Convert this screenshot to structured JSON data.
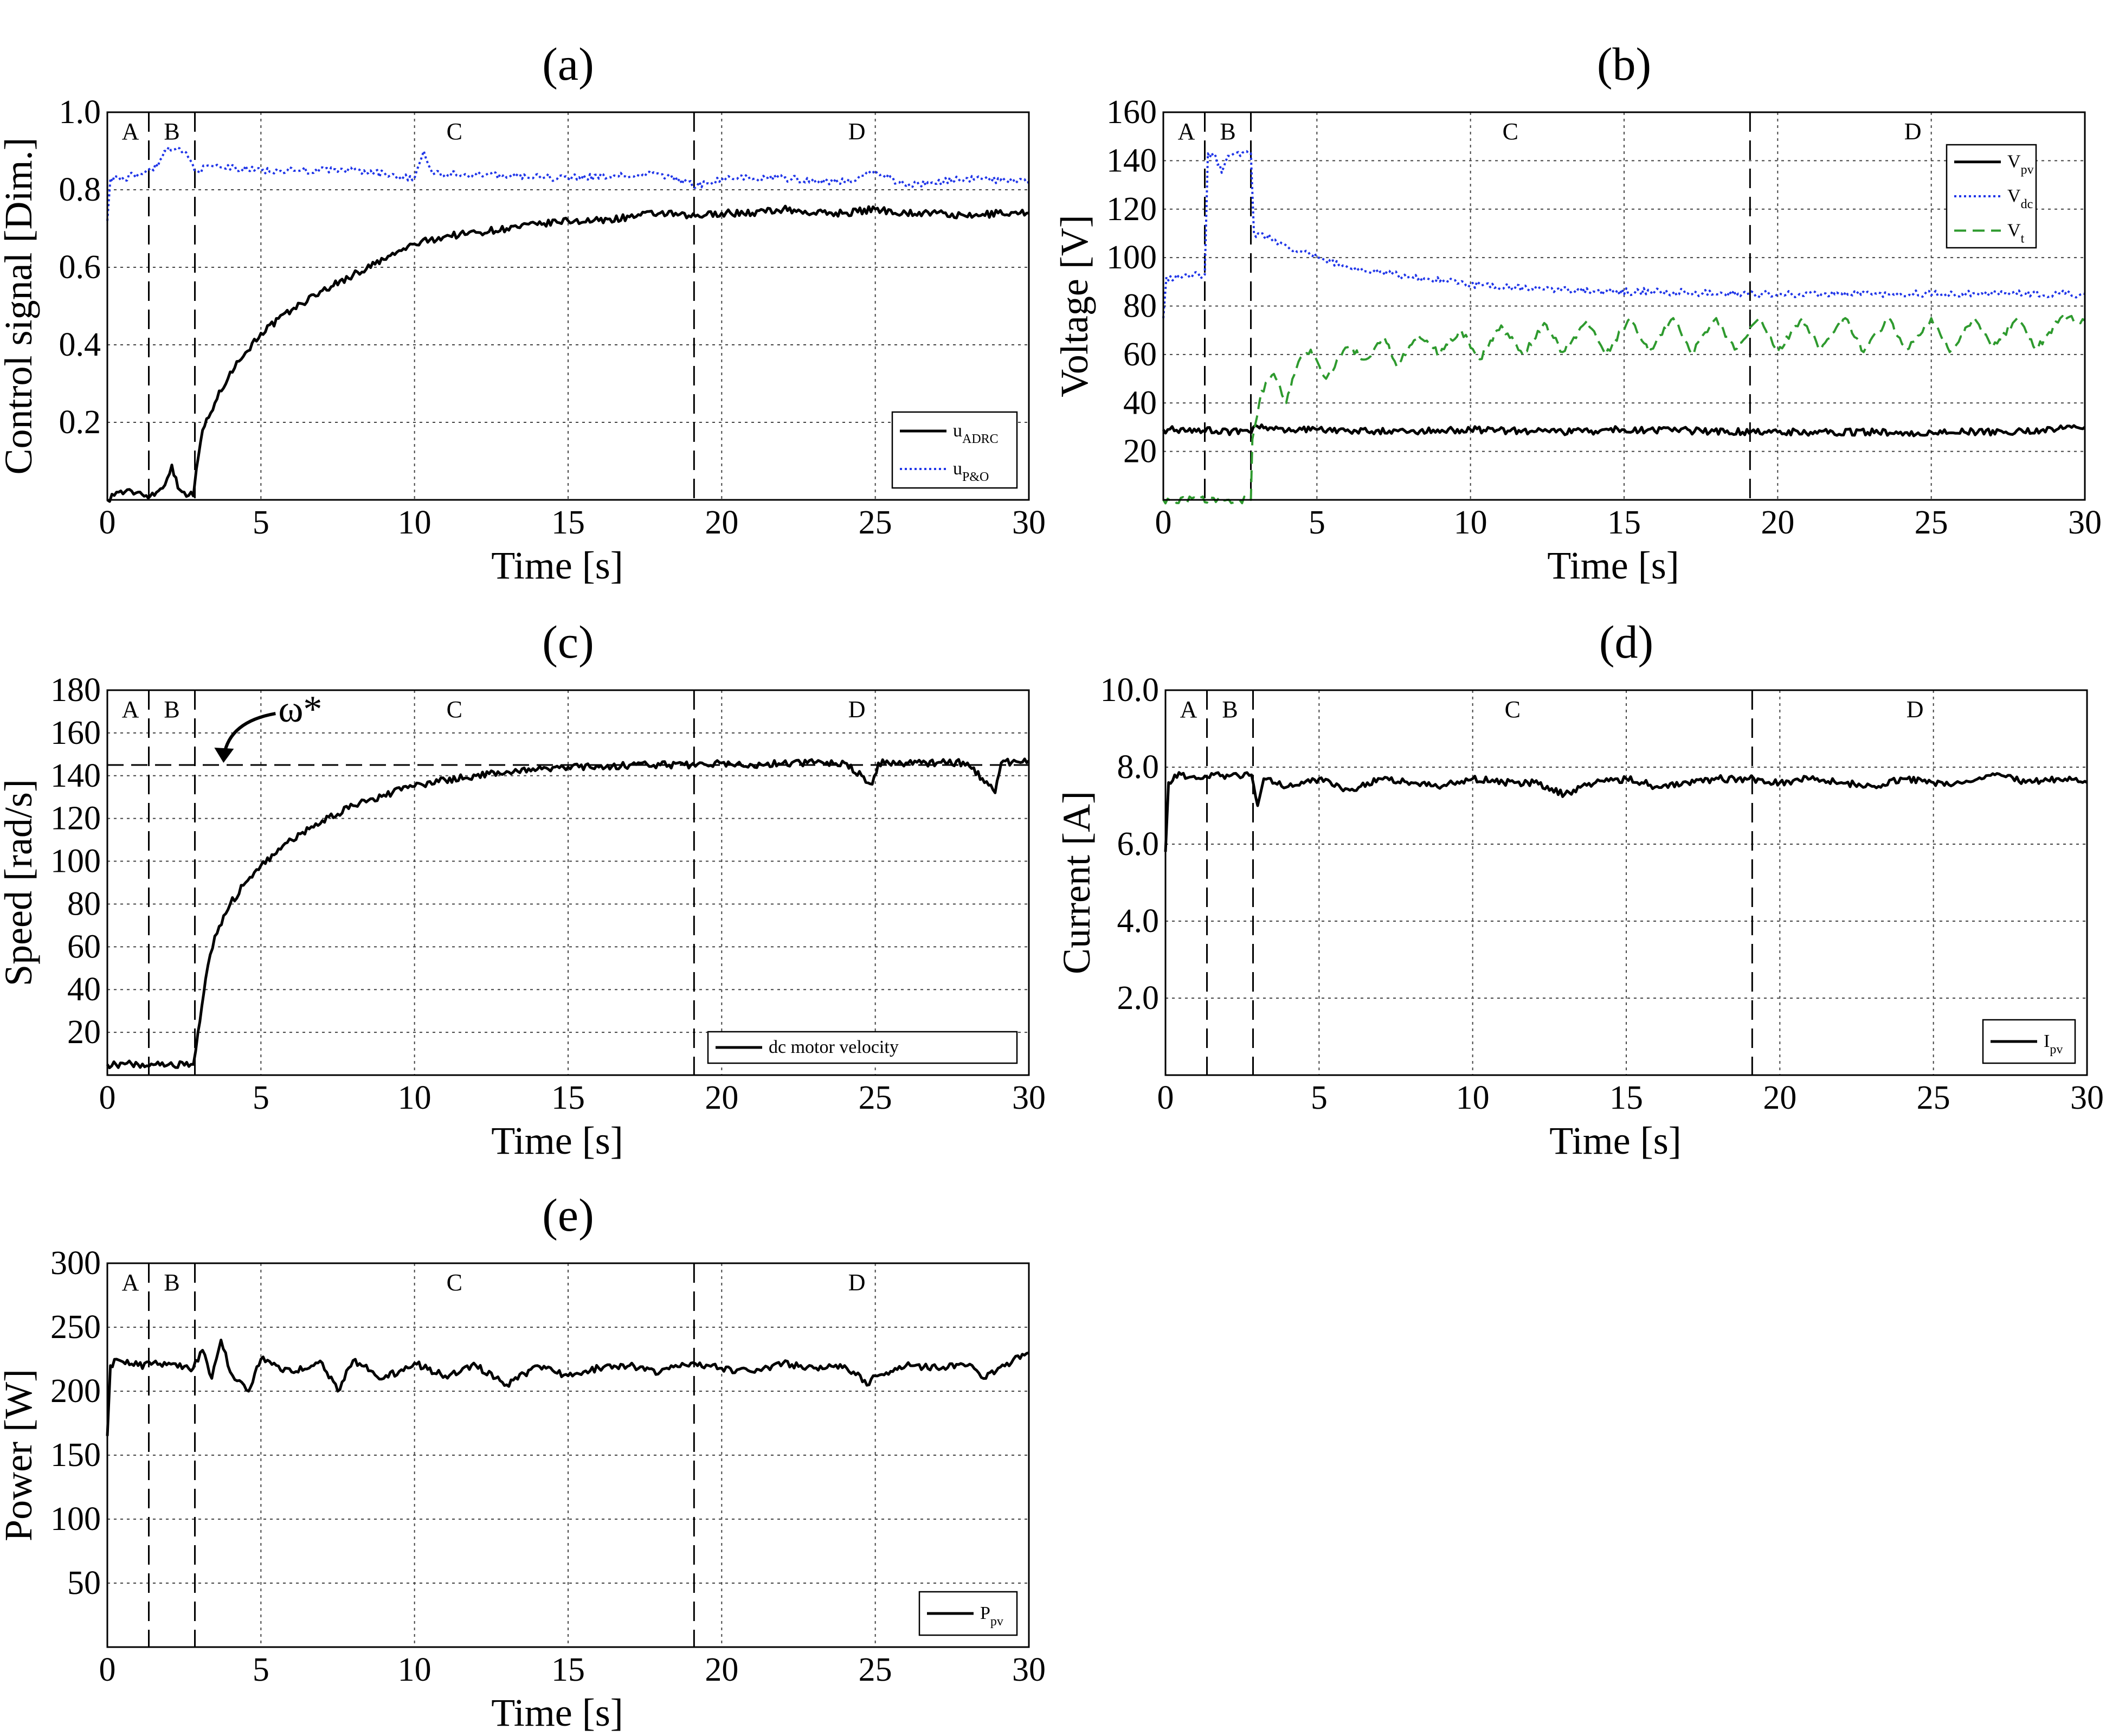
{
  "figure": {
    "colors": {
      "black": "#000000",
      "blue": "#1f35e8",
      "green": "#2e9a2e",
      "grid": "#444444"
    }
  },
  "chart_data": [
    {
      "id": "a",
      "type": "line",
      "panel_label": "(a)",
      "xlabel": "Time [s]",
      "ylabel": "Control signal [Dim.]",
      "xlim": [
        0,
        30
      ],
      "ylim": [
        0,
        1.0
      ],
      "xticks": [
        0,
        5,
        10,
        15,
        20,
        25,
        30
      ],
      "yticks": [
        0.2,
        0.4,
        0.6,
        0.8,
        1.0
      ],
      "ytick_labels": [
        "0.2",
        "0.4",
        "0.6",
        "0.8",
        "1.0"
      ],
      "regions": [
        {
          "label": "A",
          "x": 0.75
        },
        {
          "label": "B",
          "x": 2.1
        },
        {
          "label": "C",
          "x": 11.3
        },
        {
          "label": "D",
          "x": 24.4
        }
      ],
      "boundaries": [
        1.35,
        2.85,
        19.1
      ],
      "legend_position": "bottom-right",
      "series": [
        {
          "name": "u",
          "sub": "ADRC",
          "color": "#000000",
          "dash": "solid",
          "x": [
            0,
            0.3,
            1,
            1.4,
            1.8,
            2.1,
            2.3,
            2.5,
            2.8,
            2.9,
            3.1,
            3.5,
            4,
            4.5,
            5,
            6,
            7,
            8,
            9,
            10,
            11,
            12,
            13,
            14,
            15,
            16,
            17,
            18,
            19,
            20,
            21,
            22,
            23,
            24,
            25,
            26,
            27,
            28,
            29,
            30
          ],
          "y": [
            0.0,
            0.02,
            0.02,
            0.01,
            0.03,
            0.09,
            0.03,
            0.02,
            0.01,
            0.08,
            0.18,
            0.25,
            0.33,
            0.38,
            0.43,
            0.49,
            0.54,
            0.58,
            0.62,
            0.66,
            0.68,
            0.69,
            0.7,
            0.71,
            0.72,
            0.72,
            0.73,
            0.74,
            0.73,
            0.74,
            0.74,
            0.75,
            0.74,
            0.74,
            0.75,
            0.74,
            0.74,
            0.73,
            0.74,
            0.74
          ]
        },
        {
          "name": "u",
          "sub": "P&O",
          "color": "#1f35e8",
          "dash": "dotted",
          "x": [
            0,
            0.1,
            0.5,
            1,
            1.5,
            2.0,
            2.5,
            2.9,
            3.5,
            5,
            8,
            10,
            10.3,
            10.6,
            12,
            15,
            18,
            19.2,
            20,
            22,
            24,
            25,
            26,
            28,
            30
          ],
          "y": [
            0.72,
            0.83,
            0.83,
            0.84,
            0.85,
            0.91,
            0.9,
            0.85,
            0.86,
            0.85,
            0.85,
            0.83,
            0.9,
            0.84,
            0.84,
            0.83,
            0.84,
            0.81,
            0.83,
            0.83,
            0.82,
            0.85,
            0.81,
            0.83,
            0.82
          ]
        }
      ]
    },
    {
      "id": "b",
      "type": "line",
      "panel_label": "(b)",
      "xlabel": "Time [s]",
      "ylabel": "Voltage [V]",
      "xlim": [
        0,
        30
      ],
      "ylim": [
        0,
        160
      ],
      "xticks": [
        0,
        5,
        10,
        15,
        20,
        25,
        30
      ],
      "yticks": [
        20,
        40,
        60,
        80,
        100,
        120,
        140,
        160
      ],
      "ytick_labels": [
        "20",
        "40",
        "60",
        "80",
        "100",
        "120",
        "140",
        "160"
      ],
      "regions": [
        {
          "label": "A",
          "x": 0.75
        },
        {
          "label": "B",
          "x": 2.1
        },
        {
          "label": "C",
          "x": 11.3
        },
        {
          "label": "D",
          "x": 24.4
        }
      ],
      "boundaries": [
        1.35,
        2.85,
        19.1
      ],
      "legend_position": "top-right",
      "series": [
        {
          "name": "V",
          "sub": "pv",
          "color": "#000000",
          "dash": "solid",
          "x": [
            0,
            2.8,
            3.2,
            3.6,
            5,
            8,
            10,
            13,
            15,
            20,
            24,
            24.5,
            25,
            28,
            30
          ],
          "y": [
            29,
            28,
            31,
            29,
            29,
            28,
            29,
            28,
            29,
            28,
            28,
            27,
            28,
            28,
            30
          ]
        },
        {
          "name": "V",
          "sub": "dc",
          "color": "#1f35e8",
          "dash": "dotted",
          "x": [
            0,
            0.1,
            0.5,
            1.35,
            1.45,
            1.7,
            1.9,
            2.1,
            2.3,
            2.85,
            2.95,
            3.5,
            4,
            5,
            6,
            8,
            10,
            12,
            14,
            16,
            19,
            20,
            22,
            24,
            26,
            28,
            30
          ],
          "y": [
            75,
            92,
            92,
            93,
            143,
            142,
            135,
            142,
            143,
            143,
            110,
            108,
            105,
            100,
            96,
            92,
            89,
            87,
            86,
            86,
            85,
            85,
            85,
            85,
            85,
            85,
            85
          ]
        },
        {
          "name": "V",
          "sub": "t",
          "color": "#2e9a2e",
          "dash": "dashed",
          "x": [
            0,
            2.85,
            2.9,
            3.2,
            3.6,
            4.0,
            4.4,
            4.8,
            5.3,
            6,
            6.6,
            7.2,
            7.6,
            8.3,
            9,
            9.7,
            10.3,
            11,
            11.7,
            12.4,
            13,
            13.8,
            14.4,
            15.2,
            15.8,
            16.6,
            17.2,
            18,
            18.6,
            19.4,
            20,
            20.8,
            21.4,
            22.2,
            22.8,
            23.6,
            24.2,
            25,
            25.6,
            26.4,
            27,
            27.8,
            28.4,
            29.2,
            30
          ],
          "y": [
            0,
            0,
            25,
            45,
            52,
            40,
            57,
            62,
            50,
            63,
            58,
            67,
            55,
            68,
            60,
            70,
            58,
            72,
            60,
            73,
            61,
            74,
            60,
            75,
            61,
            75,
            60,
            75,
            62,
            75,
            61,
            75,
            62,
            75,
            61,
            75,
            62,
            75,
            61,
            75,
            63,
            75,
            62,
            75,
            74
          ]
        }
      ]
    },
    {
      "id": "c",
      "type": "line",
      "panel_label": "(c)",
      "xlabel": "Time [s]",
      "ylabel": "Speed [rad/s]",
      "xlim": [
        0,
        30
      ],
      "ylim": [
        0,
        180
      ],
      "xticks": [
        0,
        5,
        10,
        15,
        20,
        25,
        30
      ],
      "yticks": [
        20,
        40,
        60,
        80,
        100,
        120,
        140,
        160,
        180
      ],
      "ytick_labels": [
        "20",
        "40",
        "60",
        "80",
        "100",
        "120",
        "140",
        "160",
        "180"
      ],
      "regions": [
        {
          "label": "A",
          "x": 0.75
        },
        {
          "label": "B",
          "x": 2.1
        },
        {
          "label": "C",
          "x": 11.3
        },
        {
          "label": "D",
          "x": 24.4
        }
      ],
      "boundaries": [
        1.35,
        2.85,
        19.1
      ],
      "reference": {
        "label": "ω*",
        "value": 145
      },
      "legend_position": "bottom-right",
      "series": [
        {
          "name": "dc motor velocity",
          "sub": "",
          "color": "#000000",
          "dash": "solid",
          "x": [
            0,
            1,
            2,
            2.8,
            2.95,
            3.2,
            3.5,
            4,
            4.5,
            5,
            6,
            7,
            8,
            9,
            10,
            11,
            12,
            13,
            14,
            15,
            16,
            17,
            18,
            19,
            20,
            21,
            22,
            23,
            24,
            24.9,
            25.1,
            26,
            27,
            28,
            28.9,
            29.1,
            30
          ],
          "y": [
            5,
            5,
            5,
            5,
            20,
            45,
            65,
            80,
            90,
            98,
            110,
            119,
            126,
            131,
            135,
            138,
            140,
            142,
            143,
            144,
            144,
            145,
            145,
            145,
            146,
            145,
            146,
            146,
            146,
            136,
            146,
            146,
            146,
            146,
            132,
            146,
            147
          ]
        }
      ]
    },
    {
      "id": "d",
      "type": "line",
      "panel_label": "(d)",
      "xlabel": "Time [s]",
      "ylabel": "Current [A]",
      "xlim": [
        0,
        30
      ],
      "ylim": [
        0,
        10
      ],
      "xticks": [
        0,
        5,
        10,
        15,
        20,
        25,
        30
      ],
      "yticks": [
        2,
        4,
        6,
        8,
        10
      ],
      "ytick_labels": [
        "2.0",
        "4.0",
        "6.0",
        "8.0",
        "10.0"
      ],
      "regions": [
        {
          "label": "A",
          "x": 0.75
        },
        {
          "label": "B",
          "x": 2.1
        },
        {
          "label": "C",
          "x": 11.3
        },
        {
          "label": "D",
          "x": 24.4
        }
      ],
      "boundaries": [
        1.35,
        2.85,
        19.1
      ],
      "legend_position": "bottom-right",
      "series": [
        {
          "name": "I",
          "sub": "pv",
          "color": "#000000",
          "dash": "solid",
          "x": [
            0,
            0.1,
            0.3,
            1,
            2,
            2.8,
            3.0,
            3.2,
            4,
            5,
            6,
            7,
            8,
            9,
            10,
            11,
            12,
            13,
            14,
            15,
            16,
            17,
            18,
            19,
            20,
            21,
            22,
            23,
            24,
            25,
            26,
            27,
            28,
            29,
            30
          ],
          "y": [
            5.8,
            7.6,
            7.8,
            7.7,
            7.8,
            7.8,
            7.0,
            7.7,
            7.5,
            7.7,
            7.4,
            7.7,
            7.6,
            7.5,
            7.7,
            7.6,
            7.6,
            7.3,
            7.6,
            7.7,
            7.5,
            7.6,
            7.7,
            7.7,
            7.6,
            7.7,
            7.6,
            7.5,
            7.7,
            7.6,
            7.6,
            7.8,
            7.6,
            7.7,
            7.6
          ]
        }
      ]
    },
    {
      "id": "e",
      "type": "line",
      "panel_label": "(e)",
      "xlabel": "Time [s]",
      "ylabel": "Power [W]",
      "xlim": [
        0,
        30
      ],
      "ylim": [
        0,
        300
      ],
      "xticks": [
        0,
        5,
        10,
        15,
        20,
        25,
        30
      ],
      "yticks": [
        50,
        100,
        150,
        200,
        250,
        300
      ],
      "ytick_labels": [
        "50",
        "100",
        "150",
        "200",
        "250",
        "300"
      ],
      "regions": [
        {
          "label": "A",
          "x": 0.75
        },
        {
          "label": "B",
          "x": 2.1
        },
        {
          "label": "C",
          "x": 11.3
        },
        {
          "label": "D",
          "x": 24.4
        }
      ],
      "boundaries": [
        1.35,
        2.85,
        19.1
      ],
      "legend_position": "bottom-right",
      "series": [
        {
          "name": "P",
          "sub": "pv",
          "color": "#000000",
          "dash": "solid",
          "x": [
            0,
            0.1,
            0.3,
            1,
            2,
            2.8,
            3.1,
            3.4,
            3.7,
            4,
            4.6,
            5,
            6,
            7,
            7.5,
            8,
            9,
            10,
            11,
            12,
            13,
            14,
            15,
            16,
            17,
            18,
            19,
            20,
            21,
            22,
            23,
            24,
            24.8,
            25,
            26,
            27,
            28,
            28.6,
            29,
            30
          ],
          "y": [
            165,
            220,
            225,
            220,
            222,
            218,
            232,
            210,
            240,
            215,
            200,
            225,
            215,
            222,
            200,
            224,
            210,
            222,
            212,
            220,
            205,
            220,
            212,
            218,
            220,
            215,
            222,
            218,
            215,
            222,
            218,
            220,
            205,
            212,
            220,
            218,
            220,
            210,
            218,
            230
          ]
        }
      ]
    }
  ]
}
